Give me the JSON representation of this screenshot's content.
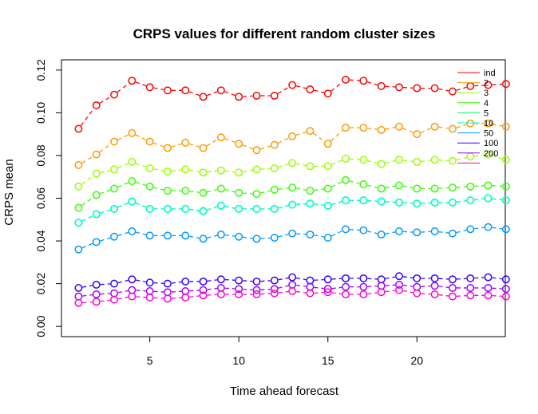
{
  "chart_data": {
    "type": "line",
    "title": "CRPS values for different random cluster sizes",
    "xlabel": "Time ahead forecast",
    "ylabel": "CRPS mean",
    "xlim": [
      0.04,
      24.96
    ],
    "ylim": [
      -0.0048,
      0.1248
    ],
    "x_ticks": [
      "5",
      "10",
      "15",
      "20"
    ],
    "y_ticks": [
      "0.00",
      "0.02",
      "0.04",
      "0.06",
      "0.08",
      "0.10",
      "0.12"
    ],
    "grid": false,
    "legend": "top-right",
    "x": [
      1,
      2,
      3,
      4,
      5,
      6,
      7,
      8,
      9,
      10,
      11,
      12,
      13,
      14,
      15,
      16,
      17,
      18,
      19,
      20,
      21,
      22,
      23,
      24,
      25
    ],
    "series": [
      {
        "name": "ind",
        "color": "#ff0000",
        "values": [
          0.0925,
          0.1035,
          0.1085,
          0.115,
          0.112,
          0.1105,
          0.1105,
          0.1075,
          0.1105,
          0.1075,
          0.108,
          0.108,
          0.113,
          0.111,
          0.109,
          0.1155,
          0.115,
          0.1125,
          0.112,
          0.1115,
          0.1115,
          0.11,
          0.1125,
          0.113,
          0.1135
        ]
      },
      {
        "name": "2",
        "color": "#ff9900",
        "values": [
          0.0755,
          0.0805,
          0.0865,
          0.0905,
          0.0865,
          0.0835,
          0.086,
          0.0835,
          0.0885,
          0.0855,
          0.0825,
          0.085,
          0.089,
          0.0915,
          0.0855,
          0.093,
          0.093,
          0.092,
          0.0935,
          0.09,
          0.0935,
          0.0925,
          0.095,
          0.095,
          0.0935
        ]
      },
      {
        "name": "3",
        "color": "#99ff00",
        "values": [
          0.0655,
          0.0715,
          0.0735,
          0.077,
          0.074,
          0.0725,
          0.0735,
          0.072,
          0.073,
          0.072,
          0.0735,
          0.074,
          0.0765,
          0.075,
          0.075,
          0.0785,
          0.078,
          0.076,
          0.078,
          0.077,
          0.078,
          0.0775,
          0.0795,
          0.0805,
          0.078
        ]
      },
      {
        "name": "4",
        "color": "#33ff00",
        "values": [
          0.0555,
          0.0615,
          0.0645,
          0.068,
          0.0655,
          0.0635,
          0.0635,
          0.0625,
          0.0645,
          0.0625,
          0.062,
          0.064,
          0.065,
          0.0635,
          0.0645,
          0.0685,
          0.0665,
          0.0645,
          0.066,
          0.0645,
          0.0645,
          0.065,
          0.0655,
          0.066,
          0.0655
        ]
      },
      {
        "name": "5",
        "color": "#00ff66",
        "values": [
          0.0485,
          0.0525,
          0.055,
          0.0585,
          0.055,
          0.055,
          0.055,
          0.054,
          0.0565,
          0.055,
          0.055,
          0.055,
          0.057,
          0.0575,
          0.0565,
          0.059,
          0.059,
          0.0585,
          0.058,
          0.0575,
          0.058,
          0.058,
          0.059,
          0.06,
          0.059
        ]
      },
      {
        "name": "10",
        "color": "#00ffcc",
        "values": [
          0.0485,
          0.0525,
          0.055,
          0.0585,
          0.055,
          0.055,
          0.055,
          0.054,
          0.0565,
          0.055,
          0.055,
          0.055,
          0.057,
          0.0575,
          0.0565,
          0.059,
          0.059,
          0.0585,
          0.058,
          0.0575,
          0.058,
          0.058,
          0.059,
          0.06,
          0.059
        ]
      },
      {
        "name": "50",
        "color": "#0099ff",
        "values": [
          0.036,
          0.0395,
          0.042,
          0.0445,
          0.0425,
          0.0425,
          0.0425,
          0.041,
          0.043,
          0.042,
          0.041,
          0.0415,
          0.0435,
          0.043,
          0.0415,
          0.0455,
          0.045,
          0.043,
          0.0445,
          0.044,
          0.0445,
          0.0435,
          0.0455,
          0.0465,
          0.0455
        ]
      },
      {
        "name": "100",
        "color": "#3300ff",
        "values": [
          0.018,
          0.0195,
          0.02,
          0.022,
          0.0205,
          0.02,
          0.021,
          0.021,
          0.022,
          0.0215,
          0.021,
          0.0215,
          0.023,
          0.0215,
          0.022,
          0.0225,
          0.0225,
          0.022,
          0.0235,
          0.0225,
          0.0225,
          0.022,
          0.0225,
          0.023,
          0.022
        ]
      },
      {
        "name": "200",
        "color": "#9900ff",
        "values": [
          0.014,
          0.015,
          0.0155,
          0.017,
          0.0165,
          0.016,
          0.0165,
          0.017,
          0.018,
          0.0175,
          0.017,
          0.0175,
          0.0195,
          0.0185,
          0.0175,
          0.0185,
          0.0185,
          0.019,
          0.0195,
          0.0185,
          0.019,
          0.018,
          0.018,
          0.018,
          0.0175
        ]
      },
      {
        "name": "",
        "color": "#ff00cc",
        "values": [
          0.011,
          0.0115,
          0.0125,
          0.014,
          0.0135,
          0.013,
          0.0135,
          0.0145,
          0.015,
          0.015,
          0.015,
          0.0155,
          0.0165,
          0.0155,
          0.016,
          0.015,
          0.015,
          0.016,
          0.017,
          0.0155,
          0.015,
          0.014,
          0.0145,
          0.0145,
          0.014
        ]
      }
    ]
  }
}
